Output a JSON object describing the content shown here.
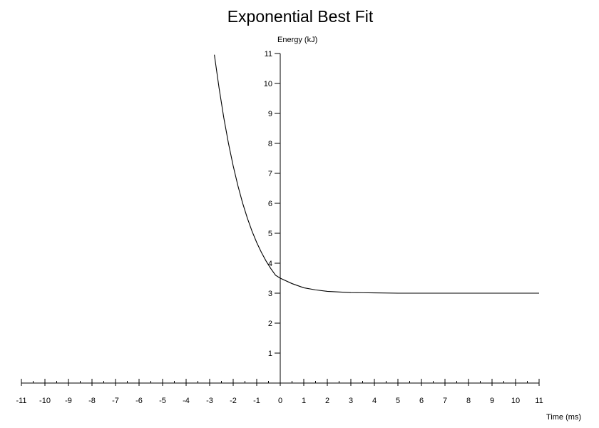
{
  "chart_data": {
    "type": "line",
    "title": "Exponential Best Fit",
    "xlabel": "Time (ms)",
    "ylabel": "Energy (kJ)",
    "xlim": [
      -11,
      11
    ],
    "ylim": [
      0,
      11
    ],
    "x_ticks": [
      -11,
      -10,
      -9,
      -8,
      -7,
      -6,
      -5,
      -4,
      -3,
      -2,
      -1,
      0,
      1,
      2,
      3,
      4,
      5,
      6,
      7,
      8,
      9,
      10,
      11
    ],
    "y_ticks": [
      1,
      2,
      3,
      4,
      5,
      6,
      7,
      8,
      9,
      10,
      11
    ],
    "x_minor_step": 0.5,
    "grid": false,
    "series": [
      {
        "x": [
          -2.8,
          -2.6,
          -2.4,
          -2.2,
          -2.0,
          -1.8,
          -1.6,
          -1.4,
          -1.2,
          -1.0,
          -0.8,
          -0.6,
          -0.4,
          -0.2,
          0.0,
          0.5,
          1.0,
          1.5,
          2.0,
          2.5,
          3.0,
          4.0,
          5.0,
          6.0,
          8.0,
          11.0
        ],
        "values": [
          10.96,
          9.85,
          8.86,
          8.0,
          7.25,
          6.59,
          6.01,
          5.51,
          5.07,
          4.69,
          4.36,
          4.07,
          3.82,
          3.6,
          3.5,
          3.32,
          3.18,
          3.11,
          3.06,
          3.04,
          3.02,
          3.01,
          3.0,
          3.0,
          3.0,
          3.0
        ],
        "color": "#000000"
      }
    ]
  }
}
